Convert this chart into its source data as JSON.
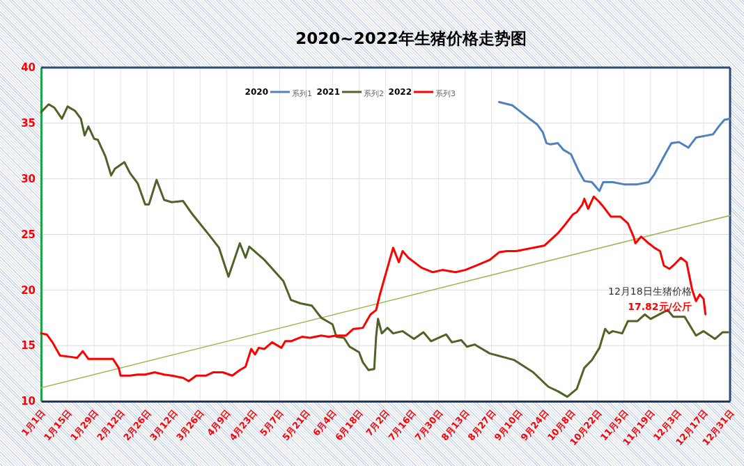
{
  "chart_data": {
    "type": "line",
    "title": "2020~2022年生猪价格走势图",
    "xlim": [
      "--01-01",
      "--12-31"
    ],
    "xticks": [
      {
        "value": "--01-01",
        "label": "1月1日"
      },
      {
        "value": "--01-15",
        "label": "1月15日"
      },
      {
        "value": "--01-29",
        "label": "1月29日"
      },
      {
        "value": "--02-12",
        "label": "2月12日"
      },
      {
        "value": "--02-26",
        "label": "2月26日"
      },
      {
        "value": "--03-12",
        "label": "3月12日"
      },
      {
        "value": "--03-26",
        "label": "3月26日"
      },
      {
        "value": "--04-09",
        "label": "4月9日"
      },
      {
        "value": "--04-23",
        "label": "4月23日"
      },
      {
        "value": "--05-07",
        "label": "5月7日"
      },
      {
        "value": "--05-21",
        "label": "5月21日"
      },
      {
        "value": "--06-04",
        "label": "6月4日"
      },
      {
        "value": "--06-18",
        "label": "6月18日"
      },
      {
        "value": "--07-02",
        "label": "7月2日"
      },
      {
        "value": "--07-16",
        "label": "7月16日"
      },
      {
        "value": "--07-30",
        "label": "7月30日"
      },
      {
        "value": "--08-13",
        "label": "8月13日"
      },
      {
        "value": "--08-27",
        "label": "8月27日"
      },
      {
        "value": "--09-10",
        "label": "9月10日"
      },
      {
        "value": "--09-24",
        "label": "9月24日"
      },
      {
        "value": "--10-08",
        "label": "10月8日"
      },
      {
        "value": "--10-22",
        "label": "10月22日"
      },
      {
        "value": "--11-05",
        "label": "11月5日"
      },
      {
        "value": "--11-19",
        "label": "11月19日"
      },
      {
        "value": "--12-03",
        "label": "12月3日"
      },
      {
        "value": "--12-17",
        "label": "12月17日"
      },
      {
        "value": "--12-31",
        "label": "12月31日"
      }
    ],
    "ylim": [
      10,
      40
    ],
    "yticks": [
      10,
      15,
      20,
      25,
      30,
      35,
      40
    ],
    "grid": true,
    "legend": "top",
    "series": [
      {
        "name": "2020",
        "color": "#4f81bd",
        "x": [
          "--08-31",
          "--09-07",
          "--09-10",
          "--09-16",
          "--09-20",
          "--09-23",
          "--09-25",
          "--09-27",
          "--10-01",
          "--10-04",
          "--10-08",
          "--10-12",
          "--10-15",
          "--10-19",
          "--10-23",
          "--10-25",
          "--10-30",
          "--11-05",
          "--11-12",
          "--11-18",
          "--11-21",
          "--11-27",
          "--11-30",
          "--12-04",
          "--12-09",
          "--12-13",
          "--12-19",
          "--12-22",
          "--12-25",
          "--12-28",
          "--12-31"
        ],
        "values": [
          36.9,
          36.6,
          36.2,
          35.4,
          34.9,
          34.2,
          33.2,
          33.1,
          33.2,
          32.6,
          32.2,
          30.7,
          29.8,
          29.7,
          28.9,
          29.7,
          29.7,
          29.5,
          29.5,
          29.7,
          30.4,
          32.3,
          33.2,
          33.3,
          32.8,
          33.7,
          33.9,
          34.0,
          34.7,
          35.3,
          35.4
        ]
      },
      {
        "name": "2021",
        "color": "#4f6228",
        "x": [
          "--01-01",
          "--01-05",
          "--01-08",
          "--01-12",
          "--01-15",
          "--01-19",
          "--01-22",
          "--01-24",
          "--01-26",
          "--01-29",
          "--01-31",
          "--02-04",
          "--02-07",
          "--02-09",
          "--02-14",
          "--02-17",
          "--02-21",
          "--02-25",
          "--02-27",
          "--03-03",
          "--03-07",
          "--03-11",
          "--03-17",
          "--03-22",
          "--03-31",
          "--04-05",
          "--04-10",
          "--04-16",
          "--04-19",
          "--04-21",
          "--04-29",
          "--05-09",
          "--05-13",
          "--05-18",
          "--05-24",
          "--05-29",
          "--06-04",
          "--06-06",
          "--06-10",
          "--06-13",
          "--06-18",
          "--06-20",
          "--06-23",
          "--06-26",
          "--06-27",
          "--06-28",
          "--06-30",
          "--07-03",
          "--07-06",
          "--07-11",
          "--07-17",
          "--07-22",
          "--07-26",
          "--08-03",
          "--08-06",
          "--08-11",
          "--08-14",
          "--08-18",
          "--08-26",
          "--09-08",
          "--09-18",
          "--09-26",
          "--10-01",
          "--10-06",
          "--10-11",
          "--10-15",
          "--10-19",
          "--10-23",
          "--10-26",
          "--10-28",
          "--10-30",
          "--11-04",
          "--11-07",
          "--11-12",
          "--11-16",
          "--11-19",
          "--11-28",
          "--12-01",
          "--12-07",
          "--12-13",
          "--12-17",
          "--12-23",
          "--12-27",
          "--12-30"
        ],
        "values": [
          36.0,
          36.7,
          36.4,
          35.4,
          36.5,
          36.1,
          35.4,
          33.9,
          34.7,
          33.6,
          33.5,
          32.0,
          30.3,
          30.9,
          31.5,
          30.5,
          29.6,
          27.7,
          27.7,
          29.9,
          28.1,
          27.9,
          28.0,
          26.8,
          24.9,
          23.8,
          21.2,
          24.2,
          22.9,
          23.9,
          22.7,
          20.8,
          19.1,
          18.8,
          18.6,
          17.5,
          16.9,
          15.8,
          15.7,
          14.9,
          14.4,
          13.5,
          12.8,
          12.9,
          15.8,
          17.4,
          16.1,
          16.6,
          16.1,
          16.3,
          15.6,
          16.2,
          15.4,
          16.0,
          15.3,
          15.5,
          14.9,
          15.1,
          14.3,
          13.7,
          12.6,
          11.3,
          10.9,
          10.4,
          11.1,
          13.0,
          13.7,
          14.8,
          16.5,
          16.1,
          16.3,
          16.1,
          17.2,
          17.2,
          17.8,
          17.4,
          18.2,
          17.6,
          17.6,
          15.9,
          16.3,
          15.6,
          16.2,
          16.2
        ]
      },
      {
        "name": "2022",
        "color": "#ff0000",
        "x": [
          "--01-01",
          "--01-04",
          "--01-07",
          "--01-11",
          "--01-16",
          "--01-20",
          "--01-23",
          "--01-26",
          "--01-30",
          "--02-03",
          "--02-08",
          "--02-11",
          "--02-12",
          "--02-17",
          "--02-21",
          "--02-25",
          "--03-02",
          "--03-07",
          "--03-11",
          "--03-17",
          "--03-20",
          "--03-24",
          "--03-29",
          "--04-02",
          "--04-07",
          "--04-12",
          "--04-16",
          "--04-19",
          "--04-22",
          "--04-24",
          "--04-26",
          "--04-29",
          "--05-03",
          "--05-08",
          "--05-10",
          "--05-13",
          "--05-19",
          "--05-23",
          "--05-29",
          "--06-02",
          "--06-06",
          "--06-11",
          "--06-15",
          "--06-20",
          "--06-24",
          "--06-27",
          "--06-29",
          "--07-06",
          "--07-09",
          "--07-11",
          "--07-14",
          "--07-21",
          "--07-27",
          "--08-01",
          "--08-08",
          "--08-13",
          "--08-19",
          "--08-26",
          "--08-31",
          "--09-04",
          "--09-09",
          "--09-18",
          "--09-24",
          "--10-01",
          "--10-04",
          "--10-09",
          "--10-11",
          "--10-14",
          "--10-15",
          "--10-17",
          "--10-20",
          "--10-23",
          "--10-25",
          "--10-29",
          "--11-03",
          "--11-07",
          "--11-10",
          "--11-11",
          "--11-14",
          "--11-18",
          "--11-21",
          "--11-24",
          "--11-26",
          "--11-29",
          "--12-01",
          "--12-05",
          "--12-08",
          "--12-11",
          "--12-13",
          "--12-15",
          "--12-17",
          "--12-18"
        ],
        "values": [
          16.1,
          16.0,
          15.3,
          14.1,
          14.0,
          13.9,
          14.5,
          13.8,
          13.8,
          13.8,
          13.8,
          13.0,
          12.3,
          12.3,
          12.4,
          12.4,
          12.6,
          12.4,
          12.3,
          12.1,
          11.8,
          12.3,
          12.3,
          12.6,
          12.6,
          12.3,
          12.8,
          13.1,
          14.7,
          14.2,
          14.8,
          14.7,
          15.3,
          14.8,
          15.4,
          15.4,
          15.8,
          15.7,
          15.9,
          15.8,
          15.9,
          15.9,
          16.5,
          16.6,
          17.8,
          18.2,
          19.6,
          23.8,
          22.5,
          23.5,
          22.9,
          22.0,
          21.6,
          21.8,
          21.6,
          21.8,
          22.2,
          22.7,
          23.4,
          23.5,
          23.5,
          23.8,
          24.0,
          25.1,
          25.7,
          26.8,
          27.0,
          27.7,
          28.2,
          27.3,
          28.4,
          27.9,
          27.5,
          26.6,
          26.6,
          26.0,
          24.8,
          24.2,
          24.8,
          24.2,
          23.8,
          23.5,
          22.2,
          21.9,
          22.2,
          22.9,
          22.5,
          20.0,
          19.0,
          19.6,
          19.2,
          17.82
        ]
      },
      {
        "type": "line",
        "color": "#9bbb59",
        "x": [
          "--01-01",
          "--12-31"
        ],
        "values": [
          11.2,
          26.7
        ]
      }
    ],
    "annotations": [
      "系列1",
      "系列2",
      "系列3",
      {
        "text": "12月18日生猪价格",
        "x": "--12-18",
        "y": 17.82
      },
      {
        "text": "17.82元/公斤",
        "x": "--12-18",
        "y": 17.82
      }
    ]
  }
}
